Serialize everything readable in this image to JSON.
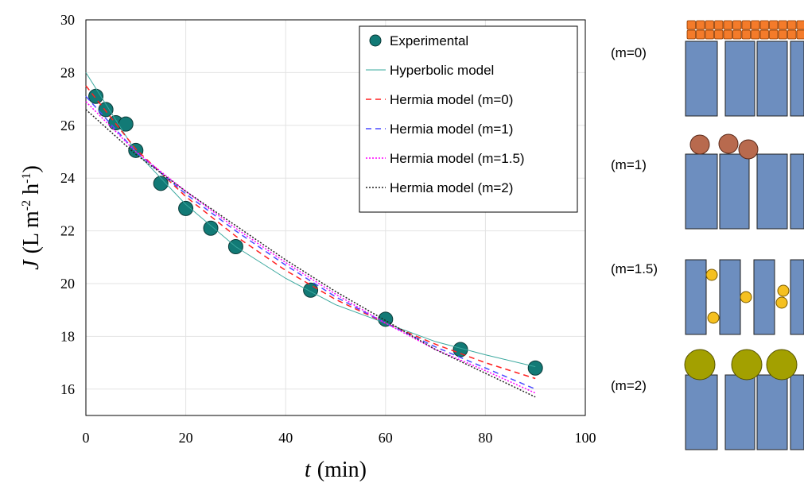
{
  "chart_data": {
    "type": "line",
    "xlabel": [
      "t",
      "(min)"
    ],
    "ylabel": [
      "J",
      "(L m",
      "-2",
      " h",
      "-1",
      ")"
    ],
    "xlim": [
      0,
      100
    ],
    "xticks": [
      0,
      20,
      40,
      60,
      80,
      100
    ],
    "ylim": [
      15,
      30
    ],
    "yticks": [
      16,
      18,
      20,
      22,
      24,
      26,
      28,
      30
    ],
    "grid": true,
    "legend": "upper right",
    "series": [
      {
        "name": "Experimental",
        "color": "#127a76",
        "style": "marker",
        "x": [
          2,
          4,
          6,
          8,
          10,
          15,
          20,
          25,
          30,
          45,
          60,
          75,
          90
        ],
        "values": [
          27.1,
          26.6,
          26.1,
          26.05,
          25.05,
          23.8,
          22.85,
          22.1,
          21.4,
          19.75,
          18.65,
          17.5,
          16.8
        ]
      },
      {
        "name": "Hyperbolic model",
        "color": "#3aa89e",
        "style": "solid",
        "x": [
          0,
          10,
          20,
          30,
          40,
          50,
          60,
          70,
          80,
          90
        ],
        "values": [
          28,
          25.0,
          23.0,
          21.4,
          20.2,
          19.2,
          18.5,
          17.8,
          17.3,
          16.85
        ]
      },
      {
        "name": "Hermia model (m=0)",
        "color": "#ff2020",
        "style": "dashed",
        "x": [
          0,
          10,
          20,
          30,
          40,
          50,
          60,
          70,
          80,
          90
        ],
        "values": [
          27.5,
          25.1,
          23.3,
          21.8,
          20.5,
          19.4,
          18.5,
          17.7,
          17.0,
          16.4
        ]
      },
      {
        "name": "Hermia model (m=1)",
        "color": "#4a4aff",
        "style": "dashed",
        "x": [
          0,
          10,
          20,
          30,
          40,
          50,
          60,
          70,
          80,
          90
        ],
        "values": [
          27.1,
          25.0,
          23.4,
          22.0,
          20.7,
          19.5,
          18.5,
          17.6,
          16.8,
          16.0
        ]
      },
      {
        "name": "Hermia model (m=1.5)",
        "color": "#ff00ff",
        "style": "dotted",
        "x": [
          0,
          10,
          20,
          30,
          40,
          50,
          60,
          70,
          80,
          90
        ],
        "values": [
          26.9,
          25.0,
          23.5,
          22.1,
          20.8,
          19.6,
          18.5,
          17.5,
          16.7,
          15.85
        ]
      },
      {
        "name": "Hermia model (m=2)",
        "color": "#222222",
        "style": "dotted",
        "x": [
          0,
          10,
          20,
          30,
          40,
          50,
          60,
          70,
          80,
          90
        ],
        "values": [
          26.6,
          24.9,
          23.5,
          22.2,
          20.9,
          19.7,
          18.6,
          17.5,
          16.6,
          15.7
        ]
      }
    ]
  },
  "diagram": {
    "labels": [
      "(m=0)",
      "(m=1)",
      "(m=1.5)",
      "(m=2)"
    ]
  }
}
